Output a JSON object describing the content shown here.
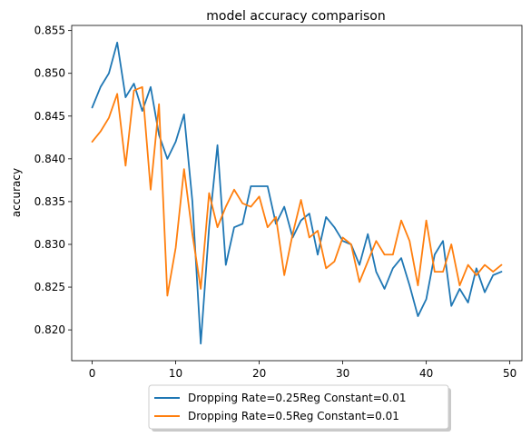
{
  "chart_data": {
    "type": "line",
    "title": "model accuracy comparison",
    "xlabel": "",
    "ylabel": "accuracy",
    "xlim": [
      -2.45,
      51.45
    ],
    "ylim": [
      0.8164,
      0.8556
    ],
    "xticks": [
      0,
      10,
      20,
      30,
      40,
      50
    ],
    "yticks": [
      0.82,
      0.825,
      0.83,
      0.835,
      0.84,
      0.845,
      0.85,
      0.855
    ],
    "ytick_labels": [
      "0.820",
      "0.825",
      "0.830",
      "0.835",
      "0.840",
      "0.845",
      "0.850",
      "0.855"
    ],
    "grid": false,
    "legend_placement": "below-center",
    "x": [
      0,
      1,
      2,
      3,
      4,
      5,
      6,
      7,
      8,
      9,
      10,
      11,
      12,
      13,
      14,
      15,
      16,
      17,
      18,
      19,
      20,
      21,
      22,
      23,
      24,
      25,
      26,
      27,
      28,
      29,
      30,
      31,
      32,
      33,
      34,
      35,
      36,
      37,
      38,
      39,
      40,
      41,
      42,
      43,
      44,
      45,
      46,
      47,
      48,
      49
    ],
    "series": [
      {
        "name": "Dropping Rate=0.25Reg Constant=0.01",
        "color": "#1f77b4",
        "values": [
          0.846,
          0.8484,
          0.85,
          0.8536,
          0.8472,
          0.8488,
          0.8456,
          0.8484,
          0.8428,
          0.84,
          0.842,
          0.8452,
          0.835,
          0.8184,
          0.832,
          0.8416,
          0.8276,
          0.832,
          0.8324,
          0.8368,
          0.8368,
          0.8368,
          0.8324,
          0.8344,
          0.8308,
          0.8328,
          0.8336,
          0.8288,
          0.8332,
          0.832,
          0.8304,
          0.83,
          0.8276,
          0.8312,
          0.8268,
          0.8248,
          0.8272,
          0.8284,
          0.8252,
          0.8216,
          0.8236,
          0.8288,
          0.8304,
          0.8228,
          0.8248,
          0.8232,
          0.8272,
          0.8244,
          0.8264,
          0.8268
        ]
      },
      {
        "name": "Dropping Rate=0.5Reg Constant=0.01",
        "color": "#ff7f0e",
        "values": [
          0.842,
          0.8432,
          0.8448,
          0.8476,
          0.8392,
          0.848,
          0.8484,
          0.8364,
          0.8464,
          0.824,
          0.8296,
          0.8388,
          0.8312,
          0.8248,
          0.836,
          0.832,
          0.8344,
          0.8364,
          0.8348,
          0.8344,
          0.8356,
          0.832,
          0.8332,
          0.8264,
          0.8312,
          0.8352,
          0.8308,
          0.8316,
          0.8272,
          0.828,
          0.8308,
          0.83,
          0.8256,
          0.828,
          0.8304,
          0.8288,
          0.8288,
          0.8328,
          0.8304,
          0.8252,
          0.8328,
          0.8268,
          0.8268,
          0.83,
          0.8252,
          0.8276,
          0.8264,
          0.8276,
          0.8268,
          0.8276
        ]
      }
    ]
  }
}
